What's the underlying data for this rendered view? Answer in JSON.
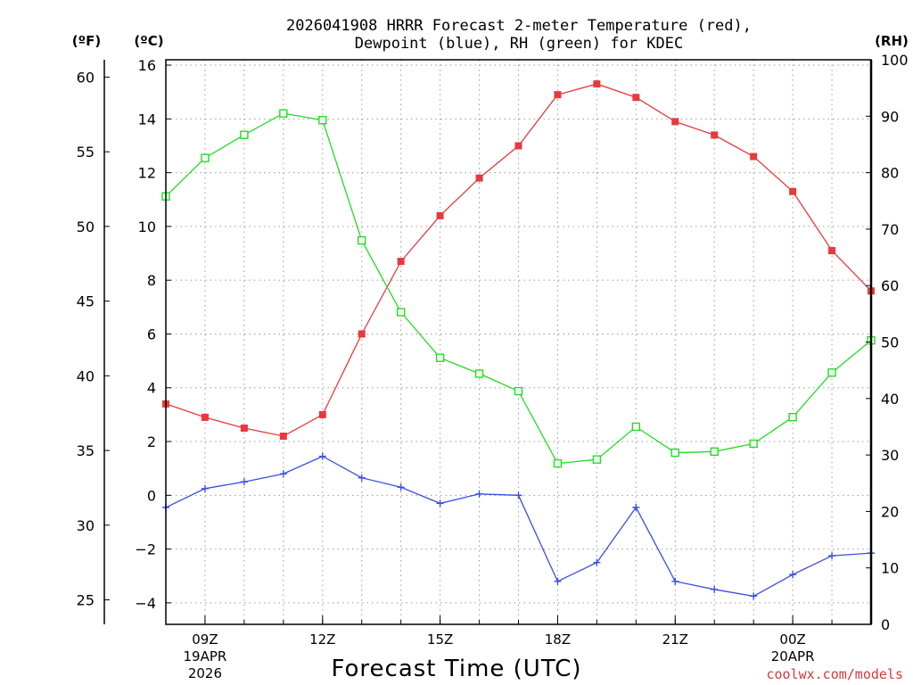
{
  "chart_data": {
    "type": "line",
    "title_line1": "2026041908 HRRR Forecast 2-meter Temperature (red),",
    "title_line2": "Dewpoint (blue), RH (green) for KDEC",
    "xlabel": "Forecast Time (UTC)",
    "credit": "coolwx.com/models",
    "units": {
      "fahrenheit": "(ºF)",
      "celsius": "(ºC)",
      "rh": "(RH)"
    },
    "celsius_axis": {
      "ylim": [
        -4.8,
        16.2
      ],
      "ticks": [
        16,
        14,
        12,
        10,
        8,
        6,
        4,
        2,
        0,
        -2,
        -4
      ],
      "tick_labels": [
        "16",
        "14",
        "12",
        "10",
        "8",
        "6",
        "4",
        "2",
        "0",
        "−2",
        "−4"
      ]
    },
    "fahrenheit_axis": {
      "ticks": [
        60,
        55,
        50,
        45,
        40,
        35,
        30,
        25
      ],
      "tick_labels": [
        "60",
        "55",
        "50",
        "45",
        "40",
        "35",
        "30",
        "25"
      ]
    },
    "rh_axis": {
      "ylim": [
        0,
        100
      ],
      "ticks": [
        100,
        90,
        80,
        70,
        60,
        50,
        40,
        30,
        20,
        10,
        0
      ],
      "tick_labels": [
        "100",
        "90",
        "80",
        "70",
        "60",
        "50",
        "40",
        "30",
        "20",
        "10",
        "0"
      ]
    },
    "x_hours": [
      0,
      1,
      2,
      3,
      4,
      5,
      6,
      7,
      8,
      9,
      10,
      11,
      12,
      13,
      14,
      15,
      16,
      17,
      18
    ],
    "x_ticks": [
      {
        "hour": 1,
        "label": "09Z",
        "sub1": "19APR",
        "sub2": "2026"
      },
      {
        "hour": 4,
        "label": "12Z",
        "sub1": "",
        "sub2": ""
      },
      {
        "hour": 7,
        "label": "15Z",
        "sub1": "",
        "sub2": ""
      },
      {
        "hour": 10,
        "label": "18Z",
        "sub1": "",
        "sub2": ""
      },
      {
        "hour": 13,
        "label": "21Z",
        "sub1": "",
        "sub2": ""
      },
      {
        "hour": 16,
        "label": "00Z",
        "sub1": "20APR",
        "sub2": ""
      }
    ],
    "series": [
      {
        "name": "Temperature",
        "unit": "C",
        "color": "#e8393c",
        "marker": "filled-square",
        "values": [
          3.4,
          2.9,
          2.5,
          2.2,
          3.0,
          6.0,
          8.7,
          10.4,
          11.8,
          13.0,
          14.9,
          15.3,
          14.8,
          13.9,
          13.4,
          12.6,
          11.3,
          9.1,
          7.6
        ]
      },
      {
        "name": "Dewpoint",
        "unit": "C",
        "color": "#3b4ee0",
        "marker": "plus",
        "values": [
          -0.45,
          0.25,
          0.5,
          0.8,
          1.45,
          0.65,
          0.3,
          -0.3,
          0.05,
          0.0,
          -3.2,
          -2.5,
          -0.45,
          -3.2,
          -3.5,
          -3.75,
          -2.95,
          -2.25,
          -2.15
        ]
      },
      {
        "name": "RH",
        "unit": "%",
        "color": "#22dd22",
        "marker": "open-square",
        "values": [
          75.8,
          82.6,
          86.7,
          90.5,
          89.3,
          68.0,
          55.3,
          47.2,
          44.4,
          41.3,
          28.5,
          29.2,
          35.0,
          30.4,
          30.6,
          32.0,
          36.7,
          44.6,
          50.3
        ]
      }
    ]
  }
}
